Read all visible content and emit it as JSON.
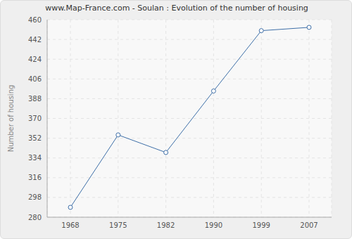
{
  "chart_data": {
    "type": "line",
    "title": "www.Map-France.com - Soulan : Evolution of the number of housing",
    "y_label": "Number of housing",
    "categories": [
      "1968",
      "1975",
      "1982",
      "1990",
      "1999",
      "2007"
    ],
    "values": [
      289,
      355,
      339,
      395,
      450,
      453
    ],
    "color": "#3e6fa8",
    "marker": "circle",
    "ylim": [
      280,
      460
    ],
    "yticks": [
      280,
      298,
      316,
      334,
      352,
      370,
      388,
      406,
      424,
      442,
      460
    ],
    "grid": true
  }
}
